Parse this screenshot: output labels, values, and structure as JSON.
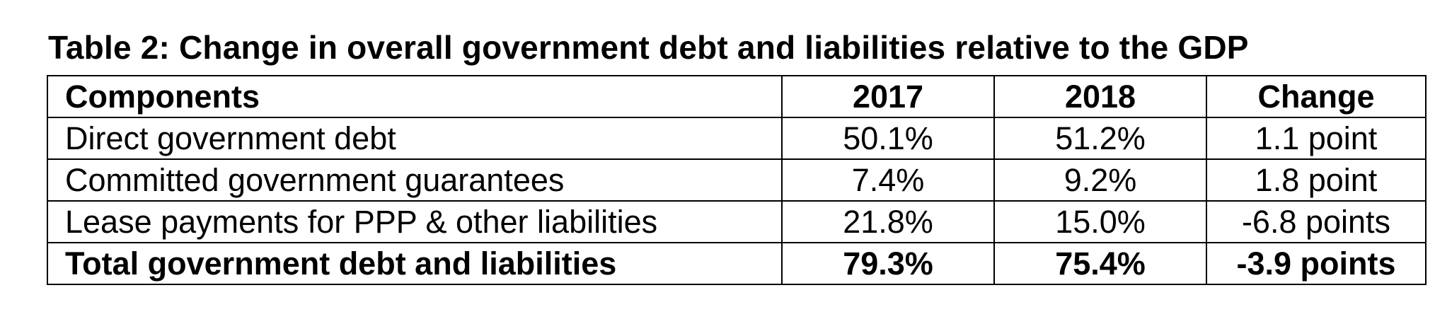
{
  "title": "Table 2: Change in overall government debt and liabilities relative to the GDP",
  "table": {
    "headers": [
      "Components",
      "2017",
      "2018",
      "Change"
    ],
    "rows": [
      [
        "Direct government debt",
        "50.1%",
        "51.2%",
        "1.1 point"
      ],
      [
        "Committed government guarantees",
        "7.4%",
        "9.2%",
        "1.8 point"
      ],
      [
        "Lease payments for PPP & other liabilities",
        "21.8%",
        "15.0%",
        "-6.8 points"
      ]
    ],
    "total": [
      "Total government debt and liabilities",
      "79.3%",
      "75.4%",
      "-3.9 points"
    ]
  }
}
